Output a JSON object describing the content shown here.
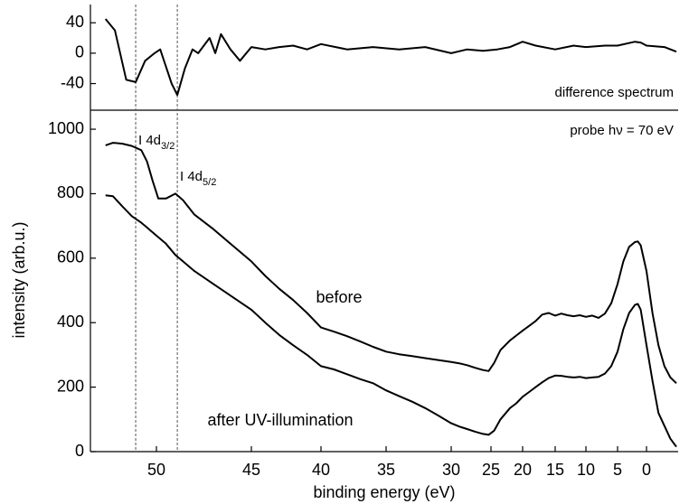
{
  "chart_data": [
    {
      "type": "line",
      "x": [
        52.7,
        52.2,
        51.6,
        51.1,
        50.6,
        50.1,
        49.8,
        49.6,
        49.2,
        48.9,
        48.5,
        48.1,
        47.8,
        47.2,
        46.9,
        46.6,
        46.1,
        45.6,
        45.0,
        44.0,
        43.0,
        42.0,
        41.0,
        40.0,
        38.0,
        36.0,
        34.0,
        32.0,
        30.0,
        28.0,
        26.0,
        24.0,
        22.0,
        20.0,
        18.0,
        15.0,
        12.0,
        10.0,
        7.0,
        5.0,
        2.0,
        1.0,
        0.0,
        -3.0,
        -5.0
      ],
      "series": [
        {
          "name": "difference spectrum",
          "color": "#000000",
          "values": [
            45,
            30,
            -35,
            -38,
            -10,
            0,
            5,
            -10,
            -40,
            -55,
            -20,
            5,
            0,
            20,
            0,
            25,
            5,
            -10,
            8,
            5,
            8,
            10,
            5,
            12,
            5,
            8,
            5,
            8,
            0,
            5,
            3,
            5,
            8,
            15,
            10,
            5,
            10,
            8,
            10,
            10,
            15,
            14,
            10,
            8,
            2
          ]
        }
      ],
      "ylim": [
        -75,
        64
      ],
      "yticks": [
        -40,
        0,
        40
      ]
    },
    {
      "type": "line",
      "x_label": "binding energy (eV)",
      "y_label": "intensity (arb.u.)",
      "annotations": [
        {
          "text": "probe hν = 70 eV"
        },
        {
          "text": "I 4d",
          "sub": "3/2"
        },
        {
          "text": "I 4d",
          "sub": "5/2"
        }
      ],
      "reference_lines": [
        51.1,
        48.9
      ],
      "x": [
        52.7,
        52.3,
        51.8,
        51.3,
        50.8,
        50.5,
        50.2,
        49.9,
        49.5,
        49.0,
        48.6,
        48.0,
        47.0,
        46.0,
        45.0,
        44.0,
        43.0,
        42.0,
        41.0,
        40.0,
        39.0,
        38.0,
        37.0,
        36.0,
        35.0,
        34.0,
        33.0,
        32.0,
        31.0,
        30.0,
        29.0,
        28.0,
        27.0,
        26.0,
        25.3,
        24.5,
        23.5,
        22.0,
        21.0,
        20.0,
        19.0,
        18.0,
        17.0,
        16.0,
        15.0,
        14.0,
        13.0,
        12.0,
        11.0,
        10.0,
        9.0,
        8.0,
        7.0,
        6.0,
        5.0,
        4.0,
        3.0,
        2.0,
        1.5,
        1.0,
        0.0,
        -1.0,
        -2.0,
        -3.0,
        -4.0,
        -5.0
      ],
      "series": [
        {
          "name": "before",
          "color": "#000000",
          "values": [
            950,
            958,
            955,
            948,
            935,
            900,
            840,
            785,
            785,
            800,
            780,
            735,
            690,
            640,
            590,
            545,
            505,
            470,
            430,
            385,
            372,
            358,
            342,
            325,
            310,
            302,
            296,
            290,
            284,
            278,
            274,
            268,
            260,
            253,
            250,
            275,
            315,
            345,
            360,
            375,
            390,
            405,
            425,
            430,
            422,
            428,
            423,
            420,
            423,
            418,
            422,
            415,
            428,
            460,
            520,
            590,
            635,
            650,
            652,
            640,
            560,
            430,
            330,
            265,
            230,
            212
          ]
        },
        {
          "name": "after UV-illumination",
          "color": "#000000",
          "values": [
            795,
            792,
            760,
            730,
            710,
            695,
            680,
            665,
            645,
            610,
            590,
            560,
            520,
            480,
            440,
            400,
            362,
            330,
            300,
            265,
            255,
            240,
            225,
            212,
            190,
            172,
            155,
            135,
            112,
            88,
            78,
            70,
            62,
            55,
            52,
            65,
            100,
            135,
            150,
            170,
            185,
            200,
            215,
            228,
            236,
            235,
            232,
            230,
            232,
            228,
            230,
            232,
            242,
            265,
            310,
            380,
            430,
            455,
            458,
            440,
            330,
            220,
            120,
            80,
            40,
            15
          ]
        }
      ],
      "xlim": [
        53.5,
        -5.3
      ],
      "xticks": [
        50,
        45,
        40,
        35,
        30,
        25,
        20,
        15,
        10,
        5,
        0
      ],
      "ylim": [
        0,
        1059
      ],
      "yticks": [
        0,
        200,
        400,
        600,
        800,
        1000
      ]
    }
  ]
}
